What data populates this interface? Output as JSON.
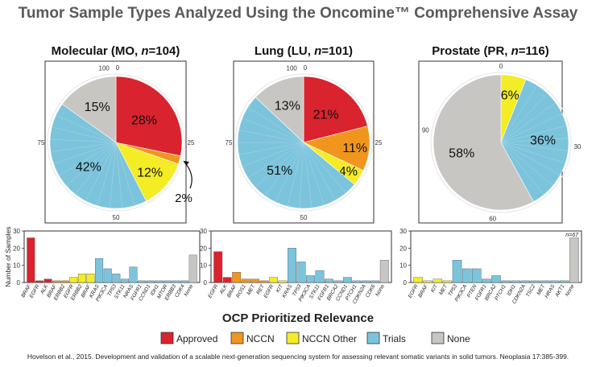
{
  "title": "Tumor Sample Types Analyzed Using the Oncomine™ Comprehensive Assay",
  "relevance_title": "OCP Prioritized Relevance",
  "bar_ylabel": "Number of Samples",
  "colors": {
    "Approved": "#d9232e",
    "NCCN": "#f0961e",
    "NCCN Other": "#f4ec25",
    "Trials": "#7cc4dc",
    "None": "#c8c6c3"
  },
  "legend": [
    {
      "label": "Approved",
      "key": "Approved"
    },
    {
      "label": "NCCN",
      "key": "NCCN"
    },
    {
      "label": "NCCN Other",
      "key": "NCCN Other"
    },
    {
      "label": "Trials",
      "key": "Trials"
    },
    {
      "label": "None",
      "key": "None"
    }
  ],
  "citation": "Hovelson et al., 2015. Development and validation of a scalable next-generation sequencing system for assessing relevant somatic variants in solid tumors. Neoplasia 17:385-399.",
  "chart_data": [
    {
      "type": "pie",
      "title": "Molecular (MO, n=104)",
      "title_pre": "Molecular (MO, ",
      "title_n": "n",
      "title_post": "=104)",
      "ticks": [
        "0",
        "25",
        "50",
        "75",
        "100"
      ],
      "slices": [
        {
          "name": "Approved",
          "value": 28,
          "label": "28%"
        },
        {
          "name": "NCCN",
          "value": 2,
          "label": "2%"
        },
        {
          "name": "NCCN Other",
          "value": 12,
          "label": "12%"
        },
        {
          "name": "Trials",
          "value": 42,
          "label": "42%"
        },
        {
          "name": "None",
          "value": 15,
          "label": "15%"
        }
      ]
    },
    {
      "type": "pie",
      "title": "Lung (LU, n=101)",
      "title_pre": "Lung (LU, ",
      "title_n": "n",
      "title_post": "=101)",
      "ticks": [
        "0",
        "25",
        "50",
        "75",
        "100"
      ],
      "slices": [
        {
          "name": "Approved",
          "value": 21,
          "label": "21%"
        },
        {
          "name": "NCCN",
          "value": 11,
          "label": "11%"
        },
        {
          "name": "NCCN Other",
          "value": 4,
          "label": "4%"
        },
        {
          "name": "Trials",
          "value": 51,
          "label": "51%"
        },
        {
          "name": "None",
          "value": 13,
          "label": "13%"
        }
      ]
    },
    {
      "type": "pie",
      "title": "Prostate (PR, n=116)",
      "title_pre": "Prostate (PR, ",
      "title_n": "n",
      "title_post": "=116)",
      "ticks": [
        "0",
        "30",
        "60",
        "90"
      ],
      "slices": [
        {
          "name": "NCCN Other",
          "value": 6,
          "label": "6%"
        },
        {
          "name": "Trials",
          "value": 36,
          "label": "36%"
        },
        {
          "name": "None",
          "value": 58,
          "label": "58%"
        }
      ]
    },
    {
      "type": "bar",
      "ylabel": "Number of Samples",
      "ylim": [
        0,
        30
      ],
      "yticks": [
        "0",
        "10",
        "20",
        "30"
      ],
      "bars": [
        {
          "gene": "BRAF",
          "value": 26,
          "cat": "Approved"
        },
        {
          "gene": "EGFR",
          "value": 1,
          "cat": "Approved"
        },
        {
          "gene": "ALK",
          "value": 2,
          "cat": "Approved"
        },
        {
          "gene": "BRAF",
          "value": 1,
          "cat": "NCCN"
        },
        {
          "gene": "ERBB2",
          "value": 1,
          "cat": "NCCN"
        },
        {
          "gene": "EGFR",
          "value": 3,
          "cat": "NCCN Other"
        },
        {
          "gene": "ERBB2",
          "value": 5,
          "cat": "NCCN Other"
        },
        {
          "gene": "BRAF",
          "value": 5,
          "cat": "NCCN Other"
        },
        {
          "gene": "KRAS",
          "value": 14,
          "cat": "Trials"
        },
        {
          "gene": "PIK3CA",
          "value": 8,
          "cat": "Trials"
        },
        {
          "gene": "TP53",
          "value": 5,
          "cat": "Trials"
        },
        {
          "gene": "STK11",
          "value": 2,
          "cat": "Trials"
        },
        {
          "gene": "NRAS",
          "value": 9,
          "cat": "Trials"
        },
        {
          "gene": "FGFR1",
          "value": 1,
          "cat": "Trials"
        },
        {
          "gene": "CCND1",
          "value": 1,
          "cat": "Trials"
        },
        {
          "gene": "IDH1",
          "value": 1,
          "cat": "Trials"
        },
        {
          "gene": "MTOR",
          "value": 1,
          "cat": "Trials"
        },
        {
          "gene": "ERBB3",
          "value": 1,
          "cat": "Trials"
        },
        {
          "gene": "CDK4",
          "value": 1,
          "cat": "Trials"
        },
        {
          "gene": "None",
          "value": 16,
          "cat": "None"
        }
      ]
    },
    {
      "type": "bar",
      "ylim": [
        0,
        30
      ],
      "yticks": [
        "0",
        "10",
        "20",
        "30"
      ],
      "bars": [
        {
          "gene": "EGFR",
          "value": 18,
          "cat": "Approved"
        },
        {
          "gene": "ALK",
          "value": 3,
          "cat": "Approved"
        },
        {
          "gene": "BRAF",
          "value": 6,
          "cat": "NCCN"
        },
        {
          "gene": "ROS1",
          "value": 2,
          "cat": "NCCN"
        },
        {
          "gene": "MET",
          "value": 2,
          "cat": "NCCN"
        },
        {
          "gene": "RET",
          "value": 1,
          "cat": "NCCN"
        },
        {
          "gene": "EGFR",
          "value": 3,
          "cat": "NCCN Other"
        },
        {
          "gene": "KIT",
          "value": 1,
          "cat": "NCCN Other"
        },
        {
          "gene": "KRAS",
          "value": 20,
          "cat": "Trials"
        },
        {
          "gene": "TP53",
          "value": 12,
          "cat": "Trials"
        },
        {
          "gene": "PIK3CA",
          "value": 4,
          "cat": "Trials"
        },
        {
          "gene": "STK11",
          "value": 7,
          "cat": "Trials"
        },
        {
          "gene": "FGFR1",
          "value": 2,
          "cat": "Trials"
        },
        {
          "gene": "BRCA2",
          "value": 1,
          "cat": "Trials"
        },
        {
          "gene": "CCND1",
          "value": 3,
          "cat": "Trials"
        },
        {
          "gene": "PTCH1",
          "value": 1,
          "cat": "Trials"
        },
        {
          "gene": "CDKN2A",
          "value": 1,
          "cat": "Trials"
        },
        {
          "gene": "CDK6",
          "value": 1,
          "cat": "Trials"
        },
        {
          "gene": "None",
          "value": 13,
          "cat": "None"
        }
      ]
    },
    {
      "type": "bar",
      "ylim": [
        0,
        30
      ],
      "yticks": [
        "0",
        "10",
        "20",
        "30"
      ],
      "annotation": "n=67",
      "bars": [
        {
          "gene": "EGFR",
          "value": 3,
          "cat": "NCCN Other"
        },
        {
          "gene": "BRAF",
          "value": 1,
          "cat": "NCCN Other"
        },
        {
          "gene": "KIT",
          "value": 2,
          "cat": "NCCN Other"
        },
        {
          "gene": "MET",
          "value": 1,
          "cat": "NCCN Other"
        },
        {
          "gene": "TP53",
          "value": 13,
          "cat": "Trials"
        },
        {
          "gene": "PIK3CA",
          "value": 8,
          "cat": "Trials"
        },
        {
          "gene": "PTEN",
          "value": 8,
          "cat": "Trials"
        },
        {
          "gene": "FGFR1",
          "value": 2,
          "cat": "Trials"
        },
        {
          "gene": "BRCA2",
          "value": 4,
          "cat": "Trials"
        },
        {
          "gene": "PTCH1",
          "value": 1,
          "cat": "Trials"
        },
        {
          "gene": "IDH1",
          "value": 1,
          "cat": "Trials"
        },
        {
          "gene": "CDKN2A",
          "value": 1,
          "cat": "Trials"
        },
        {
          "gene": "TSC2",
          "value": 1,
          "cat": "Trials"
        },
        {
          "gene": "MET",
          "value": 1,
          "cat": "Trials"
        },
        {
          "gene": "HRAS",
          "value": 1,
          "cat": "Trials"
        },
        {
          "gene": "AKT1",
          "value": 1,
          "cat": "Trials"
        },
        {
          "gene": "None",
          "value": 26,
          "cat": "None"
        }
      ]
    }
  ]
}
